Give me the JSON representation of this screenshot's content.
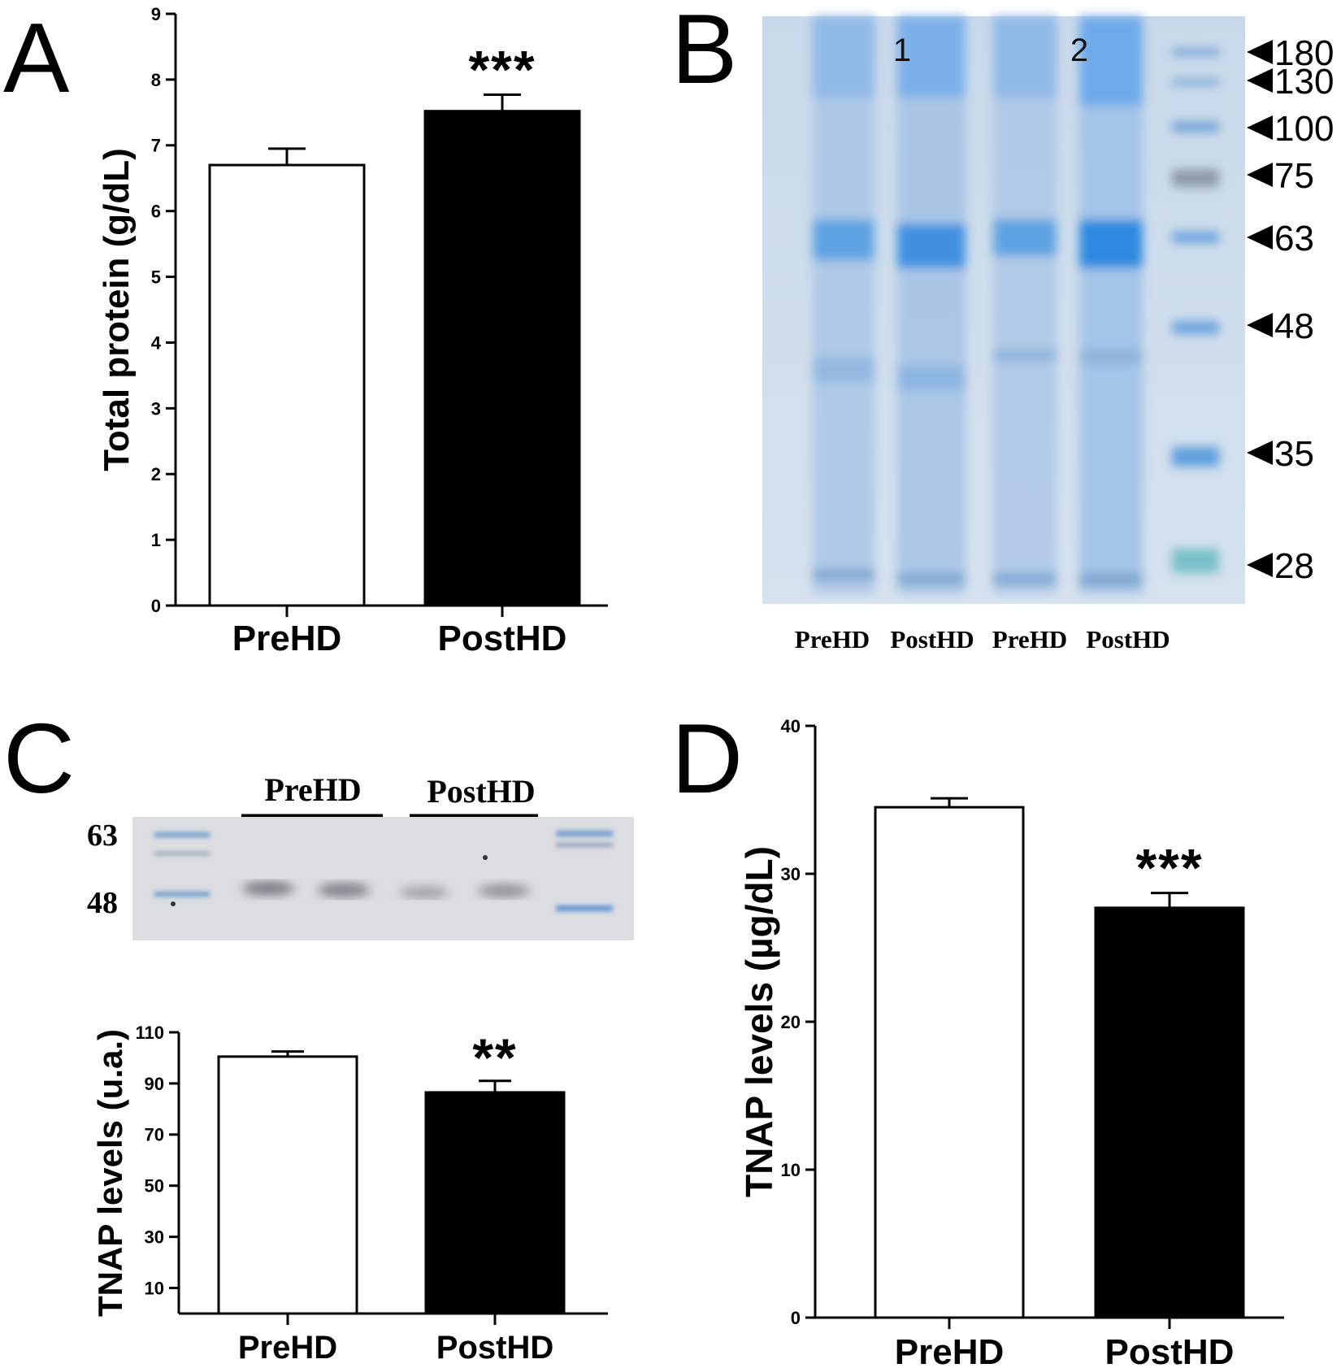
{
  "panels": {
    "A": "A",
    "B": "B",
    "C": "C",
    "D": "D"
  },
  "chart_data": [
    {
      "id": "A",
      "type": "bar",
      "categories": [
        "PreHD",
        "PostHD"
      ],
      "values": [
        6.7,
        7.52
      ],
      "errors": [
        0.25,
        0.25
      ],
      "significance": [
        "",
        "***"
      ],
      "ylabel": "Total protein (g/dL)",
      "ylim": [
        0,
        9
      ],
      "yticks": [
        0,
        1,
        2,
        3,
        4,
        5,
        6,
        7,
        8,
        9
      ],
      "colors": [
        "#ffffff",
        "#000000"
      ]
    },
    {
      "id": "C",
      "type": "bar",
      "categories": [
        "PreHD",
        "PostHD"
      ],
      "values": [
        100.5,
        86.5
      ],
      "errors": [
        2,
        4.5
      ],
      "significance": [
        "",
        "**"
      ],
      "ylabel": "TNAP levels (u.a.)",
      "ylim": [
        0,
        110
      ],
      "yticks": [
        10,
        30,
        50,
        70,
        90,
        110
      ],
      "colors": [
        "#ffffff",
        "#000000"
      ]
    },
    {
      "id": "D",
      "type": "bar",
      "categories": [
        "PreHD",
        "PostHD"
      ],
      "values": [
        34.5,
        27.7
      ],
      "errors": [
        0.6,
        1.0
      ],
      "significance": [
        "",
        "***"
      ],
      "ylabel": "TNAP levels (µg/dL)",
      "ylim": [
        0,
        40
      ],
      "yticks": [
        0,
        10,
        20,
        30,
        40
      ],
      "colors": [
        "#ffffff",
        "#000000"
      ]
    }
  ],
  "gel_B": {
    "lane_numbers": [
      "1",
      "2"
    ],
    "lane_labels": [
      "PreHD",
      "PostHD",
      "PreHD",
      "PostHD"
    ],
    "markers": [
      "180",
      "130",
      "100",
      "75",
      "63",
      "48",
      "35",
      "28"
    ]
  },
  "blot_C": {
    "group_labels": [
      "PreHD",
      "PostHD"
    ],
    "markers": [
      "63",
      "48"
    ]
  }
}
